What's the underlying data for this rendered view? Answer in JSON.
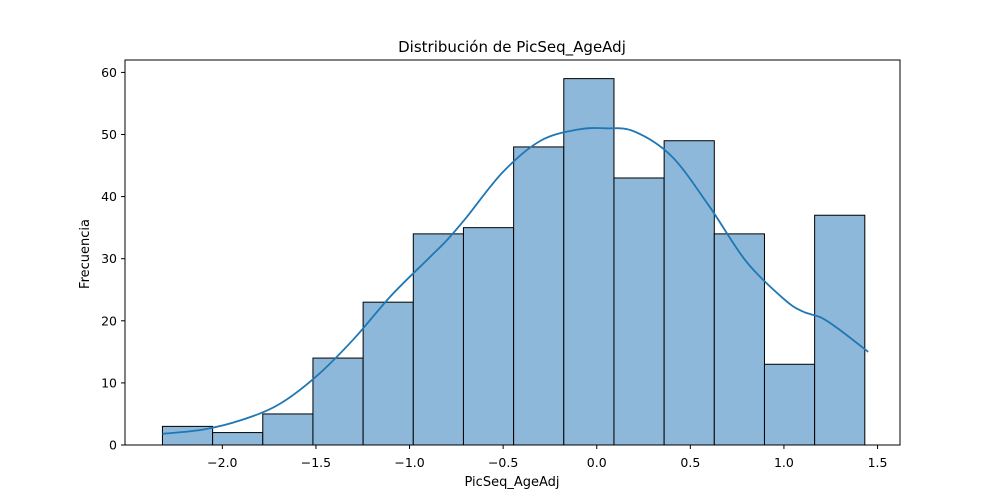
{
  "chart_data": {
    "type": "bar",
    "title": "Distribución de PicSeq_AgeAdj",
    "xlabel": "PicSeq_AgeAdj",
    "ylabel": "Frecuencia",
    "xlim": [
      -2.52,
      1.62
    ],
    "ylim": [
      0,
      62
    ],
    "grid": false,
    "bin_edges": [
      -2.32,
      -2.052,
      -1.784,
      -1.516,
      -1.248,
      -0.98,
      -0.712,
      -0.444,
      -0.176,
      0.092,
      0.36,
      0.628,
      0.896,
      1.164,
      1.432
    ],
    "values": [
      3,
      2,
      5,
      14,
      23,
      34,
      35,
      48,
      59,
      43,
      49,
      34,
      13,
      37
    ],
    "bar_color": "#8db8da",
    "bar_edge_color": "#000000",
    "kde": {
      "color": "#1f77b4",
      "x": [
        -2.32,
        -2.1,
        -1.9,
        -1.7,
        -1.5,
        -1.3,
        -1.1,
        -0.9,
        -0.8,
        -0.7,
        -0.5,
        -0.3,
        -0.1,
        0.05,
        0.2,
        0.4,
        0.6,
        0.8,
        1.0,
        1.1,
        1.2,
        1.3,
        1.45
      ],
      "y": [
        1.8,
        2.5,
        4.0,
        6.5,
        11.0,
        17.0,
        24.0,
        30.0,
        33.0,
        36.5,
        44.0,
        49.0,
        50.8,
        51.0,
        50.5,
        46.5,
        38.5,
        29.5,
        23.5,
        21.5,
        20.5,
        18.5,
        15.0
      ]
    },
    "xticks": [
      {
        "value": -2.0,
        "label": "−2.0"
      },
      {
        "value": -1.5,
        "label": "−1.5"
      },
      {
        "value": -1.0,
        "label": "−1.0"
      },
      {
        "value": -0.5,
        "label": "−0.5"
      },
      {
        "value": 0.0,
        "label": "0.0"
      },
      {
        "value": 0.5,
        "label": "0.5"
      },
      {
        "value": 1.0,
        "label": "1.0"
      },
      {
        "value": 1.5,
        "label": "1.5"
      }
    ],
    "yticks": [
      {
        "value": 0,
        "label": "0"
      },
      {
        "value": 10,
        "label": "10"
      },
      {
        "value": 20,
        "label": "20"
      },
      {
        "value": 30,
        "label": "30"
      },
      {
        "value": 40,
        "label": "40"
      },
      {
        "value": 50,
        "label": "50"
      },
      {
        "value": 60,
        "label": "60"
      }
    ]
  }
}
